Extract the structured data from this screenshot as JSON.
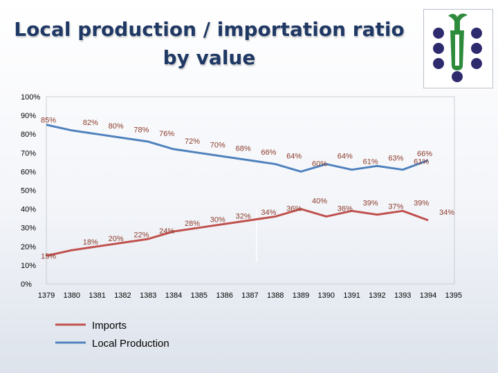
{
  "slide": {
    "title_line1": "Local production / importation ratio",
    "title_line2": "by value"
  },
  "logo": {
    "name": "grape-cluster-logo",
    "colors": {
      "grapes": "#2e2a6e",
      "stem": "#2e8b3c"
    }
  },
  "chart_data": {
    "type": "line",
    "title": "",
    "xlabel": "",
    "ylabel": "",
    "x": [
      "1379",
      "1380",
      "1381",
      "1382",
      "1383",
      "1384",
      "1385",
      "1386",
      "1387",
      "1388",
      "1389",
      "1390",
      "1391",
      "1392",
      "1393",
      "1394"
    ],
    "x_tick_labels": [
      "1379",
      "1380",
      "1381",
      "1382",
      "1383",
      "1384",
      "1385",
      "1386",
      "1387",
      "1388",
      "1389",
      "1390",
      "1391",
      "1392",
      "1393",
      "1394",
      "1395"
    ],
    "y_tick_labels": [
      "0%",
      "10%",
      "20%",
      "30%",
      "40%",
      "50%",
      "60%",
      "70%",
      "80%",
      "90%",
      "100%"
    ],
    "ylim": [
      0,
      100
    ],
    "grid": false,
    "legend_position": "bottom-left",
    "series": [
      {
        "name": "Imports",
        "color": "#c0504d",
        "values": [
          15,
          18,
          20,
          22,
          24,
          28,
          30,
          32,
          34,
          36,
          40,
          36,
          39,
          37,
          39,
          34
        ],
        "labels": [
          "15%",
          "18%",
          "20%",
          "22%",
          "24%",
          "28%",
          "30%",
          "32%",
          "34%",
          "36%",
          "40%",
          "36%",
          "39%",
          "37%",
          "39%",
          "34%"
        ]
      },
      {
        "name": "Local Production",
        "color": "#4f81bd",
        "values": [
          85,
          82,
          80,
          78,
          76,
          72,
          70,
          68,
          66,
          64,
          60,
          64,
          61,
          63,
          61,
          66
        ],
        "labels": [
          "85%",
          "82%",
          "80%",
          "78%",
          "76%",
          "72%",
          "70%",
          "68%",
          "66%",
          "64%",
          "60%",
          "64%",
          "61%",
          "63%",
          "61%",
          "66%"
        ]
      }
    ]
  }
}
